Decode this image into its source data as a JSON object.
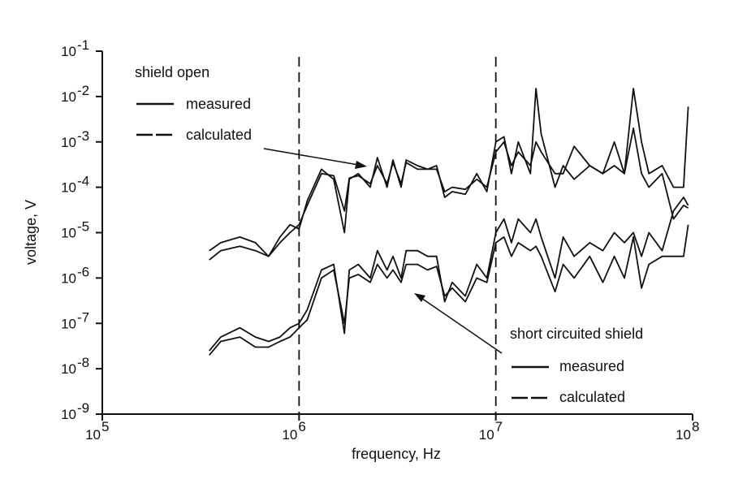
{
  "chart_data": {
    "type": "line",
    "xlabel": "frequency, Hz",
    "ylabel": "voltage, V",
    "x_scale": "log",
    "y_scale": "log",
    "xlim": [
      100000,
      100000000
    ],
    "ylim": [
      1e-09,
      0.1
    ],
    "x_ticks": [
      "10",
      "10",
      "10",
      "10"
    ],
    "x_tick_exp": [
      "5",
      "6",
      "7",
      "8"
    ],
    "y_ticks": [
      "10",
      "10",
      "10",
      "10",
      "10",
      "10",
      "10",
      "10",
      "10"
    ],
    "y_tick_exp": [
      "-1",
      "-2",
      "-3",
      "-4",
      "-5",
      "-6",
      "-7",
      "-8",
      "-9"
    ],
    "reference_lines_x": [
      1000000,
      10000000
    ],
    "legend": {
      "shield_open": {
        "title": "shield open",
        "measured": "measured",
        "calculated": "calculated"
      },
      "short_circuited": {
        "title": "short circuited shield",
        "measured": "measured",
        "calculated": "calculated"
      }
    },
    "series": [
      {
        "group": "shield open",
        "style": "measured",
        "x": [
          350000,
          400000,
          500000,
          600000,
          700000,
          800000,
          900000,
          1000000,
          1100000,
          1300000,
          1500000,
          1700000,
          1800000,
          2000000,
          2300000,
          2500000,
          2800000,
          3000000,
          3300000,
          3500000,
          4000000,
          4500000,
          5000000,
          5500000,
          6000000,
          7000000,
          8000000,
          9000000,
          10000000,
          11000000,
          12000000,
          13000000,
          15000000,
          16000000,
          17000000,
          20000000,
          22000000,
          25000000,
          30000000,
          35000000,
          40000000,
          45000000,
          50000000,
          55000000,
          60000000,
          70000000,
          80000000,
          90000000,
          95000000
        ],
        "y": [
          4e-06,
          6e-06,
          8e-06,
          6e-06,
          3e-06,
          8e-06,
          1.5e-05,
          1.2e-05,
          5e-05,
          0.00025,
          0.00015,
          1e-05,
          0.00015,
          0.0002,
          0.0001,
          0.00045,
          0.0001,
          0.0004,
          0.0001,
          0.0004,
          0.0003,
          0.00025,
          0.0003,
          6e-05,
          8e-05,
          7e-05,
          0.0002,
          8e-05,
          0.001,
          0.0013,
          0.0002,
          0.001,
          0.0002,
          0.015,
          0.0015,
          0.0001,
          0.0003,
          0.00015,
          0.0003,
          0.0002,
          0.001,
          0.0002,
          0.015,
          0.001,
          0.0002,
          0.0003,
          0.0001,
          0.0001,
          0.006
        ]
      },
      {
        "group": "shield open",
        "style": "calculated",
        "x": [
          350000,
          400000,
          500000,
          600000,
          700000,
          800000,
          900000,
          1000000,
          1100000,
          1300000,
          1500000,
          1700000,
          1800000,
          2000000,
          2300000,
          2500000,
          2800000,
          3000000,
          3300000,
          3500000,
          4000000,
          4500000,
          5000000,
          5500000,
          6000000,
          7000000,
          8000000,
          9000000,
          10000000,
          11000000,
          12000000,
          13000000,
          15000000,
          16000000,
          17000000,
          20000000,
          22000000,
          25000000,
          30000000,
          35000000,
          40000000,
          45000000,
          50000000,
          55000000,
          60000000,
          70000000,
          80000000,
          90000000,
          95000000
        ],
        "y": [
          2.5e-06,
          4e-06,
          5e-06,
          4e-06,
          3e-06,
          6e-06,
          1e-05,
          1.5e-05,
          4e-05,
          0.0002,
          0.00018,
          3e-05,
          0.00016,
          0.00018,
          0.00012,
          0.0003,
          0.00012,
          0.00035,
          0.00012,
          0.00035,
          0.00025,
          0.00025,
          0.00025,
          8e-05,
          0.0001,
          9e-05,
          0.00015,
          0.0001,
          0.0006,
          0.001,
          0.0003,
          0.0006,
          0.0003,
          0.001,
          0.0006,
          0.0002,
          0.0002,
          0.0008,
          0.0003,
          0.0002,
          0.0003,
          0.0002,
          0.002,
          0.0002,
          0.0001,
          0.0002,
          2e-05,
          4e-05,
          3.5e-05
        ]
      },
      {
        "group": "short circuited shield",
        "style": "measured",
        "x": [
          350000,
          400000,
          500000,
          600000,
          700000,
          800000,
          900000,
          1000000,
          1100000,
          1300000,
          1500000,
          1700000,
          1800000,
          2000000,
          2300000,
          2500000,
          2800000,
          3000000,
          3300000,
          3500000,
          4000000,
          4500000,
          5000000,
          5500000,
          6000000,
          7000000,
          8000000,
          9000000,
          10000000,
          11000000,
          12000000,
          13000000,
          15000000,
          16000000,
          17000000,
          20000000,
          22000000,
          25000000,
          30000000,
          35000000,
          40000000,
          45000000,
          50000000,
          55000000,
          60000000,
          70000000,
          80000000,
          90000000,
          95000000
        ],
        "y": [
          2.5e-08,
          5e-08,
          8e-08,
          5e-08,
          4e-08,
          5e-08,
          8e-08,
          1e-07,
          2e-07,
          1.5e-06,
          2e-06,
          6e-08,
          1.5e-06,
          2e-06,
          1e-06,
          4e-06,
          1.5e-06,
          3e-06,
          1e-06,
          4e-06,
          4e-06,
          3e-06,
          3e-06,
          3e-07,
          8e-07,
          4e-07,
          2e-06,
          1e-06,
          1e-05,
          2e-05,
          6e-06,
          2e-05,
          1e-05,
          2e-05,
          8e-06,
          1e-06,
          8e-06,
          3e-06,
          6e-06,
          4e-06,
          1e-05,
          6e-06,
          1e-05,
          3e-06,
          1e-05,
          4e-06,
          3e-05,
          6e-05,
          4e-05
        ]
      },
      {
        "group": "short circuited shield",
        "style": "calculated",
        "x": [
          350000,
          400000,
          500000,
          600000,
          700000,
          800000,
          900000,
          1000000,
          1100000,
          1300000,
          1500000,
          1700000,
          1800000,
          2000000,
          2300000,
          2500000,
          2800000,
          3000000,
          3300000,
          3500000,
          4000000,
          4500000,
          5000000,
          5500000,
          6000000,
          7000000,
          8000000,
          9000000,
          10000000,
          11000000,
          12000000,
          13000000,
          15000000,
          16000000,
          17000000,
          20000000,
          22000000,
          25000000,
          30000000,
          35000000,
          40000000,
          45000000,
          50000000,
          55000000,
          60000000,
          70000000,
          80000000,
          90000000,
          95000000
        ],
        "y": [
          2e-08,
          4e-08,
          5e-08,
          3e-08,
          3e-08,
          4e-08,
          5e-08,
          8e-08,
          1.2e-07,
          1e-06,
          1.5e-06,
          1e-07,
          1e-06,
          1.2e-06,
          8e-07,
          2e-06,
          1e-06,
          1.5e-06,
          8e-07,
          2e-06,
          2e-06,
          1.5e-06,
          1.8e-06,
          4e-07,
          6e-07,
          3e-07,
          1e-06,
          8e-07,
          6e-06,
          8e-06,
          3e-06,
          6e-06,
          4e-06,
          5e-06,
          3e-06,
          5e-07,
          2e-06,
          1e-06,
          3e-06,
          8e-07,
          3e-06,
          1e-06,
          8e-06,
          6e-07,
          2e-06,
          3e-06,
          3e-06,
          3e-06,
          1.5e-05
        ]
      }
    ]
  }
}
